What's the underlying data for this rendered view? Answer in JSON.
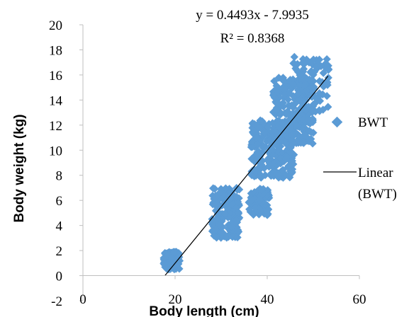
{
  "chart_data": {
    "type": "scatter",
    "xlabel": "Body length (cm)",
    "ylabel": "Body weight (kg)",
    "xlim": [
      0,
      60
    ],
    "ylim": [
      -2,
      20
    ],
    "x_ticks": [
      "0",
      "20",
      "40",
      "60"
    ],
    "y_ticks": [
      "-2",
      "0",
      "2",
      "4",
      "6",
      "8",
      "10",
      "12",
      "14",
      "16",
      "18",
      "20"
    ],
    "grid": false,
    "legend_position": "right",
    "marker_color": "#5B9BD5",
    "line_color": "#000000",
    "series": [
      {
        "name": "BWT",
        "type": "scatter",
        "clusters": [
          {
            "x": [
              17.5,
              21.0
            ],
            "y": [
              0.5,
              1.9
            ],
            "n": 140
          },
          {
            "x": [
              28.0,
              34.0
            ],
            "y": [
              3.0,
              7.0
            ],
            "n": 160
          },
          {
            "x": [
              36.0,
              40.5
            ],
            "y": [
              4.8,
              7.0
            ],
            "n": 70
          },
          {
            "x": [
              36.5,
              46.0
            ],
            "y": [
              7.8,
              12.5
            ],
            "n": 240
          },
          {
            "x": [
              41.0,
              50.0
            ],
            "y": [
              10.5,
              15.8
            ],
            "n": 220
          },
          {
            "x": [
              45.5,
              53.5
            ],
            "y": [
              13.0,
              17.5
            ],
            "n": 110
          }
        ]
      },
      {
        "name": "Linear (BWT)",
        "type": "trendline",
        "slope": 0.4493,
        "intercept": -7.9935,
        "x_range": [
          17.8,
          53.2
        ]
      }
    ],
    "annotations": {
      "equation": "y = 0.4493x - 7.9935",
      "r_squared": "R² = 0.8368"
    },
    "legend": {
      "scatter_label": "BWT",
      "line_label_1": "Linear",
      "line_label_2": "(BWT)"
    }
  }
}
